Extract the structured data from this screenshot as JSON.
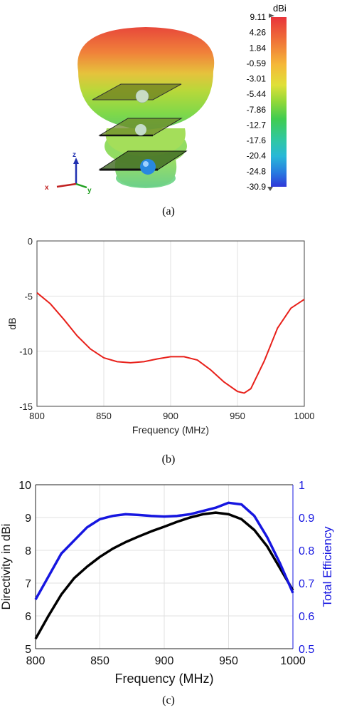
{
  "captions": {
    "a": "(a)",
    "b": "(b)",
    "c": "(c)"
  },
  "pattern_3d": {
    "colorbar_unit": "dBi",
    "colorbar_ticks": [
      "9.11",
      "4.26",
      "1.84",
      "-0.59",
      "-3.01",
      "-5.44",
      "-7.86",
      "-12.7",
      "-17.6",
      "-20.4",
      "-24.8",
      "-30.9"
    ],
    "axis_labels": {
      "x": "x",
      "y": "y",
      "z": "z"
    }
  },
  "chart_data": [
    {
      "type": "line",
      "id": "b",
      "title": "",
      "xlabel": "Frequency (MHz)",
      "ylabel": "dB",
      "xlim": [
        800,
        1000
      ],
      "ylim": [
        -15,
        0
      ],
      "xticks": [
        800,
        850,
        900,
        950,
        1000
      ],
      "yticks": [
        0,
        -5,
        -10,
        -15
      ],
      "grid": true,
      "series": [
        {
          "color": "#e8201a",
          "x": [
            800,
            810,
            820,
            830,
            840,
            850,
            860,
            870,
            880,
            890,
            900,
            910,
            920,
            930,
            940,
            950,
            955,
            960,
            970,
            980,
            990,
            1000
          ],
          "y": [
            -4.7,
            -5.7,
            -7.1,
            -8.6,
            -9.8,
            -10.6,
            -10.95,
            -11.05,
            -10.95,
            -10.7,
            -10.5,
            -10.5,
            -10.8,
            -11.7,
            -12.8,
            -13.65,
            -13.8,
            -13.4,
            -10.9,
            -7.9,
            -6.1,
            -5.3
          ]
        }
      ]
    },
    {
      "type": "line",
      "id": "c",
      "title": "",
      "xlabel": "Frequency (MHz)",
      "ylabel": "Directivity in dBi",
      "y2label": "Total Efficiency",
      "xlim": [
        800,
        1000
      ],
      "ylim": [
        5,
        10
      ],
      "y2lim": [
        0.5,
        1.0
      ],
      "xticks": [
        800,
        850,
        900,
        950,
        1000
      ],
      "yticks": [
        5,
        6,
        7,
        8,
        9,
        10
      ],
      "y2ticks": [
        "0.5",
        "0.6",
        "0.7",
        "0.8",
        "0.9",
        "1"
      ],
      "grid": true,
      "series": [
        {
          "axis": "left",
          "color": "#000000",
          "x": [
            800,
            810,
            820,
            830,
            840,
            850,
            860,
            870,
            880,
            890,
            900,
            910,
            920,
            930,
            940,
            950,
            960,
            970,
            980,
            990,
            1000
          ],
          "y": [
            5.3,
            6.0,
            6.65,
            7.15,
            7.5,
            7.8,
            8.05,
            8.25,
            8.42,
            8.58,
            8.72,
            8.87,
            9.0,
            9.1,
            9.15,
            9.1,
            8.95,
            8.62,
            8.12,
            7.45,
            6.78
          ]
        },
        {
          "axis": "right",
          "color": "#1616e0",
          "x": [
            800,
            810,
            820,
            830,
            840,
            850,
            860,
            870,
            880,
            890,
            900,
            910,
            920,
            930,
            940,
            950,
            960,
            970,
            980,
            990,
            1000
          ],
          "y": [
            0.65,
            0.72,
            0.79,
            0.83,
            0.87,
            0.895,
            0.905,
            0.91,
            0.908,
            0.905,
            0.903,
            0.905,
            0.91,
            0.92,
            0.93,
            0.945,
            0.94,
            0.905,
            0.84,
            0.76,
            0.67
          ]
        }
      ]
    }
  ]
}
